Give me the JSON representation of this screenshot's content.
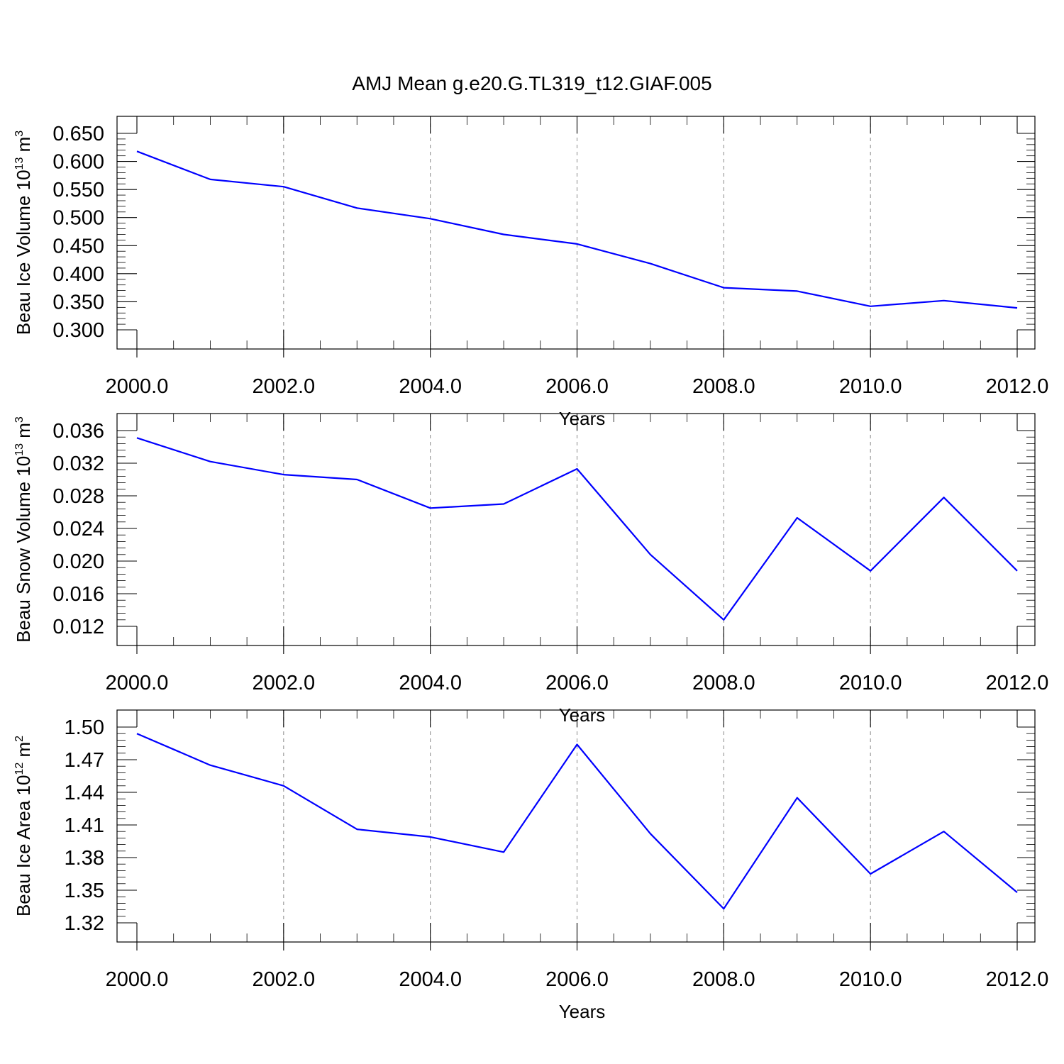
{
  "title": "AMJ Mean g.e20.G.TL319_t12.GIAF.005",
  "colors": {
    "series": "#0000ff",
    "axes": "#000000",
    "grid": "#888888"
  },
  "chart_data": [
    {
      "type": "line",
      "xlabel": "Years",
      "ylabel": {
        "text": "Beau Ice Volume 10",
        "sup": "13",
        "unit": " m",
        "unit_sup": "3"
      },
      "xlim": [
        2000,
        2012
      ],
      "ylim": [
        0.3,
        0.65
      ],
      "x_ticks": [
        2000,
        2002,
        2004,
        2006,
        2008,
        2010,
        2012
      ],
      "x_tick_labels": [
        "2000.0",
        "2002.0",
        "2004.0",
        "2006.0",
        "2008.0",
        "2010.0",
        "2012.0"
      ],
      "y_ticks": [
        0.3,
        0.35,
        0.4,
        0.45,
        0.5,
        0.55,
        0.6,
        0.65
      ],
      "y_tick_labels": [
        "0.300",
        "0.350",
        "0.400",
        "0.450",
        "0.500",
        "0.550",
        "0.600",
        "0.650"
      ],
      "grid": "vertical dashed at major x ticks",
      "x": [
        2000,
        2001,
        2002,
        2003,
        2004,
        2005,
        2006,
        2007,
        2008,
        2009,
        2010,
        2011,
        2012
      ],
      "values": [
        0.618,
        0.568,
        0.555,
        0.517,
        0.498,
        0.47,
        0.453,
        0.418,
        0.375,
        0.369,
        0.342,
        0.352,
        0.339
      ]
    },
    {
      "type": "line",
      "xlabel": "Years",
      "ylabel": {
        "text": "Beau Snow Volume 10",
        "sup": "13",
        "unit": " m",
        "unit_sup": "3"
      },
      "xlim": [
        2000,
        2012
      ],
      "ylim": [
        0.012,
        0.036
      ],
      "x_ticks": [
        2000,
        2002,
        2004,
        2006,
        2008,
        2010,
        2012
      ],
      "x_tick_labels": [
        "2000.0",
        "2002.0",
        "2004.0",
        "2006.0",
        "2008.0",
        "2010.0",
        "2012.0"
      ],
      "y_ticks": [
        0.012,
        0.016,
        0.02,
        0.024,
        0.028,
        0.032,
        0.036
      ],
      "y_tick_labels": [
        "0.012",
        "0.016",
        "0.020",
        "0.024",
        "0.028",
        "0.032",
        "0.036"
      ],
      "grid": "vertical dashed at major x ticks",
      "x": [
        2000,
        2001,
        2002,
        2003,
        2004,
        2005,
        2006,
        2007,
        2008,
        2009,
        2010,
        2011,
        2012
      ],
      "values": [
        0.0351,
        0.0322,
        0.0306,
        0.03,
        0.0265,
        0.027,
        0.0313,
        0.0208,
        0.0128,
        0.0253,
        0.0188,
        0.0278,
        0.0188
      ]
    },
    {
      "type": "line",
      "xlabel": "Years",
      "ylabel": {
        "text": "Beau Ice Area 10",
        "sup": "12",
        "unit": " m",
        "unit_sup": "2"
      },
      "xlim": [
        2000,
        2012
      ],
      "ylim": [
        1.32,
        1.5
      ],
      "x_ticks": [
        2000,
        2002,
        2004,
        2006,
        2008,
        2010,
        2012
      ],
      "x_tick_labels": [
        "2000.0",
        "2002.0",
        "2004.0",
        "2006.0",
        "2008.0",
        "2010.0",
        "2012.0"
      ],
      "y_ticks": [
        1.32,
        1.35,
        1.38,
        1.41,
        1.44,
        1.47,
        1.5
      ],
      "y_tick_labels": [
        "1.32",
        "1.35",
        "1.38",
        "1.41",
        "1.44",
        "1.47",
        "1.50"
      ],
      "grid": "vertical dashed at major x ticks",
      "x": [
        2000,
        2001,
        2002,
        2003,
        2004,
        2005,
        2006,
        2007,
        2008,
        2009,
        2010,
        2011,
        2012
      ],
      "values": [
        1.494,
        1.465,
        1.446,
        1.406,
        1.399,
        1.385,
        1.484,
        1.402,
        1.333,
        1.435,
        1.365,
        1.404,
        1.348
      ]
    }
  ]
}
